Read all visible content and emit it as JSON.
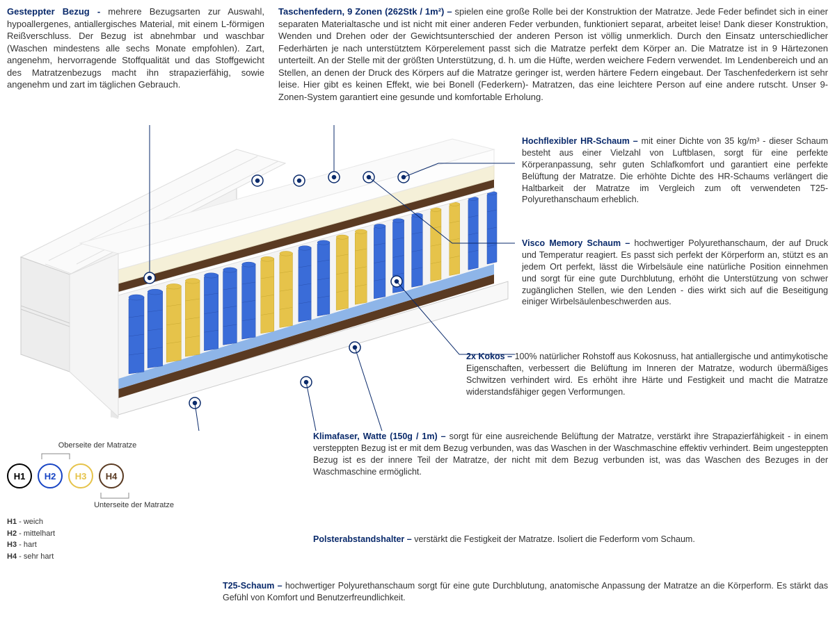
{
  "topLeft": {
    "heading": "Gesteppter Bezug - ",
    "body": "mehrere Bezugsarten zur Auswahl, hypoallergenes, antiallergisches Material, mit einem L-förmigen Reißverschluss. Der Bezug ist abnehmbar und waschbar (Waschen mindestens alle sechs Monate empfohlen). Zart, angenehm, hervorragende Stoffqualität und das Stoffgewicht des Matratzenbezugs macht ihn strapazierfähig, sowie angenehm und zart im täglichen Gebrauch."
  },
  "topRight": {
    "heading": "Taschenfedern, 9 Zonen (262Stk / 1m²) – ",
    "body": "spielen eine große Rolle bei der Konstruktion der Matratze. Jede Feder befindet sich in einer separaten Materialtasche und ist nicht mit einer anderen Feder verbunden, funktioniert separat, arbeitet leise! Dank dieser Konstruktion, Wenden und Drehen oder der Gewichtsunterschied der anderen Person ist völlig unmerklich. Durch den Einsatz unterschiedlicher Federhärten je nach unterstütztem Körperelement passt sich die Matratze perfekt dem Körper an. Die Matratze ist in 9 Härtezonen unterteilt. An der Stelle mit der größten Unterstützung, d. h. um die Hüfte, werden weichere Federn verwendet. Im Lendenbereich und an Stellen, an denen der Druck des Körpers auf die Matratze geringer ist, werden härtere Federn eingebaut. Der Taschenfederkern ist sehr leise. Hier gibt es keinen Effekt, wie bei Bonell (Federkern)- Matratzen, das eine leichtere Person auf eine andere rutscht. Unser 9-Zonen-System garantiert eine gesunde und komfortable Erholung."
  },
  "callouts": {
    "hr": {
      "heading": "Hochflexibler HR-Schaum – ",
      "body": "mit einer Dichte von 35 kg/m³ - dieser Schaum besteht aus einer Vielzahl von Luftblasen, sorgt für eine perfekte Körperanpassung, sehr guten Schlafkomfort und garantiert eine perfekte Belüftung der Matratze. Die erhöhte Dichte des HR-Schaums verlängert die Haltbarkeit der Matratze im Vergleich zum oft verwendeten T25-Polyurethanschaum erheblich."
    },
    "visco": {
      "heading": "Visco Memory Schaum – ",
      "body": "hochwertiger Polyurethanschaum, der auf Druck und Temperatur reagiert. Es passt sich perfekt der Körperform an, stützt es an jedem Ort perfekt, lässt die Wirbelsäule eine natürliche Position einnehmen und sorgt für eine gute Durchblutung, erhöht die Unterstützung von schwer zugänglichen Stellen, wie den Lenden - dies wirkt sich auf die Beseitigung einiger Wirbelsäulenbeschwerden aus."
    },
    "kokos": {
      "heading": "2x Kokos – ",
      "body": "100% natürlicher Rohstoff aus Kokosnuss, hat antiallergische und antimykotische Eigenschaften, verbessert die Belüftung im Inneren der Matratze, wodurch übermäßiges Schwitzen verhindert wird. Es erhöht ihre Härte und Festigkeit und macht die Matratze widerstandsfähiger gegen Verformungen."
    },
    "klima": {
      "heading": "Klimafaser, Watte (150g / 1m) – ",
      "body": "sorgt für eine ausreichende Belüftung der Matratze, verstärkt ihre Strapazierfähigkeit - in einem versteppten Bezug ist er mit dem Bezug verbunden, was das Waschen in der Waschmaschine effektiv verhindert. Beim ungesteppten Bezug ist es der innere Teil der Matratze, der nicht mit dem Bezug verbunden ist, was das Waschen des Bezuges in der Waschmaschine ermöglicht."
    },
    "polster": {
      "heading": "Polsterabstandshalter – ",
      "body": "verstärkt die Festigkeit der Matratze. Isoliert die Federform vom Schaum."
    },
    "t25": {
      "heading": "T25-Schaum – ",
      "body": "hochwertiger Polyurethanschaum sorgt für eine gute Durchblutung, anatomische Anpassung der Matratze an die Körperform. Es stärkt das Gefühl von Komfort und Benutzerfreundlichkeit."
    }
  },
  "hardness": {
    "topLabel": "Oberseite der Matratze",
    "bottomLabel": "Unterseite der Matratze",
    "items": [
      {
        "code": "H1",
        "label": "weich",
        "color": "#000000"
      },
      {
        "code": "H2",
        "label": "mittelhart",
        "color": "#1744c4"
      },
      {
        "code": "H3",
        "label": "hart",
        "color": "#e6c34a"
      },
      {
        "code": "H4",
        "label": "sehr hart",
        "color": "#5a3a22"
      }
    ]
  },
  "colors": {
    "heading": "#0a2a6b",
    "springBlue": "#3a6cd8",
    "springYellow": "#e6c34a",
    "foamCream": "#f5f0d8",
    "foamWhite": "#f8f8f8",
    "kokosBrown": "#5a3a22",
    "baseBlue": "#8eb5e8",
    "cover": "#eeeeee"
  }
}
